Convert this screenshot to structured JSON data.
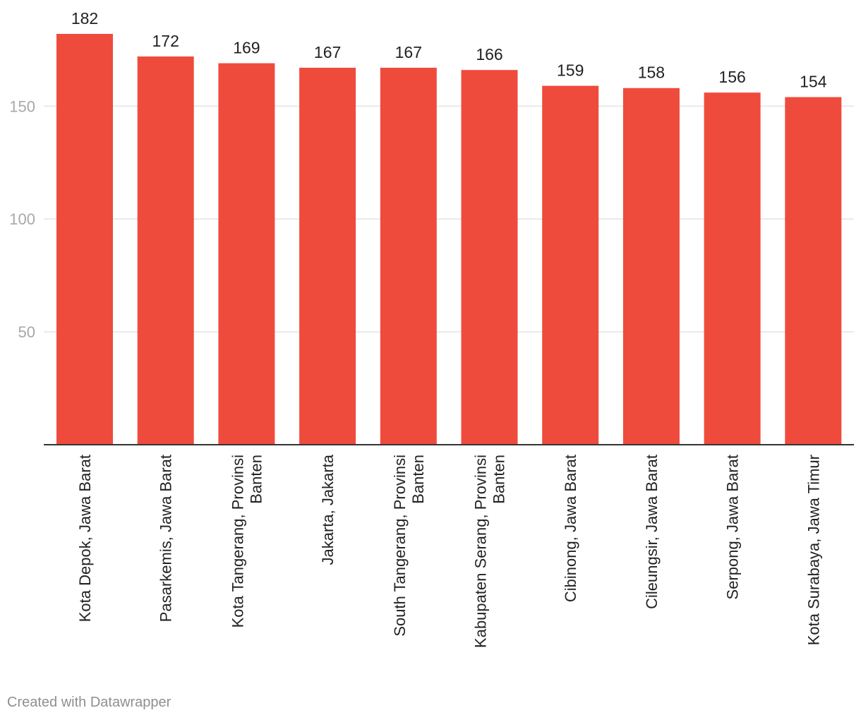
{
  "chart_data": {
    "type": "bar",
    "title": "",
    "xlabel": "",
    "ylabel": "",
    "ylim": [
      0,
      182
    ],
    "yticks": [
      50,
      100,
      150
    ],
    "categories": [
      [
        "Kota Depok, Jawa Barat"
      ],
      [
        "Pasarkemis, Jawa Barat"
      ],
      [
        "Kota Tangerang, Provinsi",
        "Banten"
      ],
      [
        "Jakarta, Jakarta"
      ],
      [
        "South Tangerang, Provinsi",
        "Banten"
      ],
      [
        "Kabupaten Serang, Provinsi",
        "Banten"
      ],
      [
        "Cibinong, Jawa Barat"
      ],
      [
        "Cileungsir, Jawa Barat"
      ],
      [
        "Serpong, Jawa Barat"
      ],
      [
        "Kota Surabaya, Jawa Timur"
      ]
    ],
    "values": [
      182,
      172,
      169,
      167,
      167,
      166,
      159,
      158,
      156,
      154
    ],
    "bar_color": "#ef4b3d",
    "grid": true
  },
  "footer": {
    "credit": "Created with Datawrapper"
  }
}
